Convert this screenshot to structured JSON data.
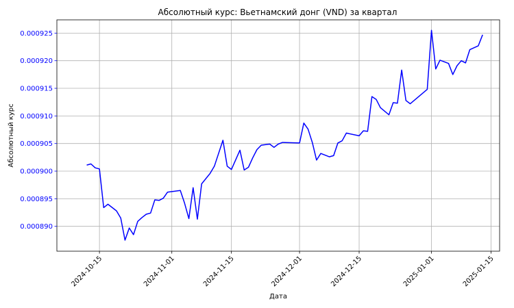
{
  "chart_data": {
    "type": "line",
    "title": "Абсолютный курс: Вьетнамский донг (VND) за квартал",
    "xlabel": "Дата",
    "ylabel": "Абсолютный курс",
    "grid": true,
    "x_ticks": [
      "2024-10-15",
      "2024-11-01",
      "2024-11-15",
      "2024-12-01",
      "2024-12-15",
      "2025-01-01",
      "2025-01-15"
    ],
    "y_ticks": [
      "0.000890",
      "0.000895",
      "0.000900",
      "0.000905",
      "0.000910",
      "0.000915",
      "0.000920",
      "0.000925"
    ],
    "xlim": [
      "2024-10-05",
      "2025-01-17"
    ],
    "ylim": [
      0.0008855,
      0.0009274
    ],
    "colors": {
      "line": "#0000ff",
      "ylabel": "#0000ff",
      "yticks": "#0000ff"
    },
    "series": [
      {
        "x": [
          "2024-10-12",
          "2024-10-13",
          "2024-10-14",
          "2024-10-15",
          "2024-10-16",
          "2024-10-17",
          "2024-10-19",
          "2024-10-20",
          "2024-10-21",
          "2024-10-22",
          "2024-10-23",
          "2024-10-24",
          "2024-10-25",
          "2024-10-26",
          "2024-10-27",
          "2024-10-28",
          "2024-10-29",
          "2024-10-30",
          "2024-10-31",
          "2024-11-01",
          "2024-11-03",
          "2024-11-04",
          "2024-11-05",
          "2024-11-06",
          "2024-11-07",
          "2024-11-08",
          "2024-11-10",
          "2024-11-11",
          "2024-11-13",
          "2024-11-14",
          "2024-11-15",
          "2024-11-17",
          "2024-11-18",
          "2024-11-19",
          "2024-11-20",
          "2024-11-21",
          "2024-11-22",
          "2024-11-24",
          "2024-11-25",
          "2024-11-26",
          "2024-11-27",
          "2024-12-01",
          "2024-12-02",
          "2024-12-03",
          "2024-12-04",
          "2024-12-05",
          "2024-12-06",
          "2024-12-08",
          "2024-12-09",
          "2024-12-10",
          "2024-12-11",
          "2024-12-12",
          "2024-12-15",
          "2024-12-16",
          "2024-12-17",
          "2024-12-18",
          "2024-12-19",
          "2024-12-20",
          "2024-12-22",
          "2024-12-23",
          "2024-12-24",
          "2024-12-25",
          "2024-12-26",
          "2024-12-27",
          "2024-12-31",
          "2025-01-01",
          "2025-01-02",
          "2025-01-03",
          "2025-01-05",
          "2025-01-06",
          "2025-01-07",
          "2025-01-08",
          "2025-01-09",
          "2025-01-10",
          "2025-01-12",
          "2025-01-13"
        ],
        "y": [
          0.0009011,
          0.0009013,
          0.0009006,
          0.0009004,
          0.0008934,
          0.000894,
          0.0008928,
          0.0008915,
          0.0008875,
          0.0008897,
          0.0008885,
          0.0008909,
          0.0008916,
          0.0008922,
          0.0008924,
          0.0008948,
          0.0008947,
          0.0008951,
          0.0008962,
          0.0008963,
          0.0008965,
          0.0008942,
          0.0008914,
          0.000897,
          0.0008913,
          0.0008977,
          0.0008996,
          0.0009009,
          0.0009056,
          0.0009009,
          0.0009003,
          0.0009038,
          0.0009002,
          0.0009007,
          0.0009024,
          0.0009039,
          0.0009047,
          0.0009049,
          0.0009043,
          0.0009049,
          0.0009052,
          0.0009051,
          0.0009087,
          0.0009076,
          0.0009052,
          0.000902,
          0.0009032,
          0.0009026,
          0.0009028,
          0.0009051,
          0.0009055,
          0.0009069,
          0.0009064,
          0.0009073,
          0.0009072,
          0.0009135,
          0.000913,
          0.0009115,
          0.0009102,
          0.0009124,
          0.0009123,
          0.0009183,
          0.0009128,
          0.0009122,
          0.0009148,
          0.0009255,
          0.0009185,
          0.0009201,
          0.0009195,
          0.0009175,
          0.0009191,
          0.00092,
          0.0009196,
          0.000922,
          0.0009227,
          0.0009247
        ]
      }
    ]
  }
}
